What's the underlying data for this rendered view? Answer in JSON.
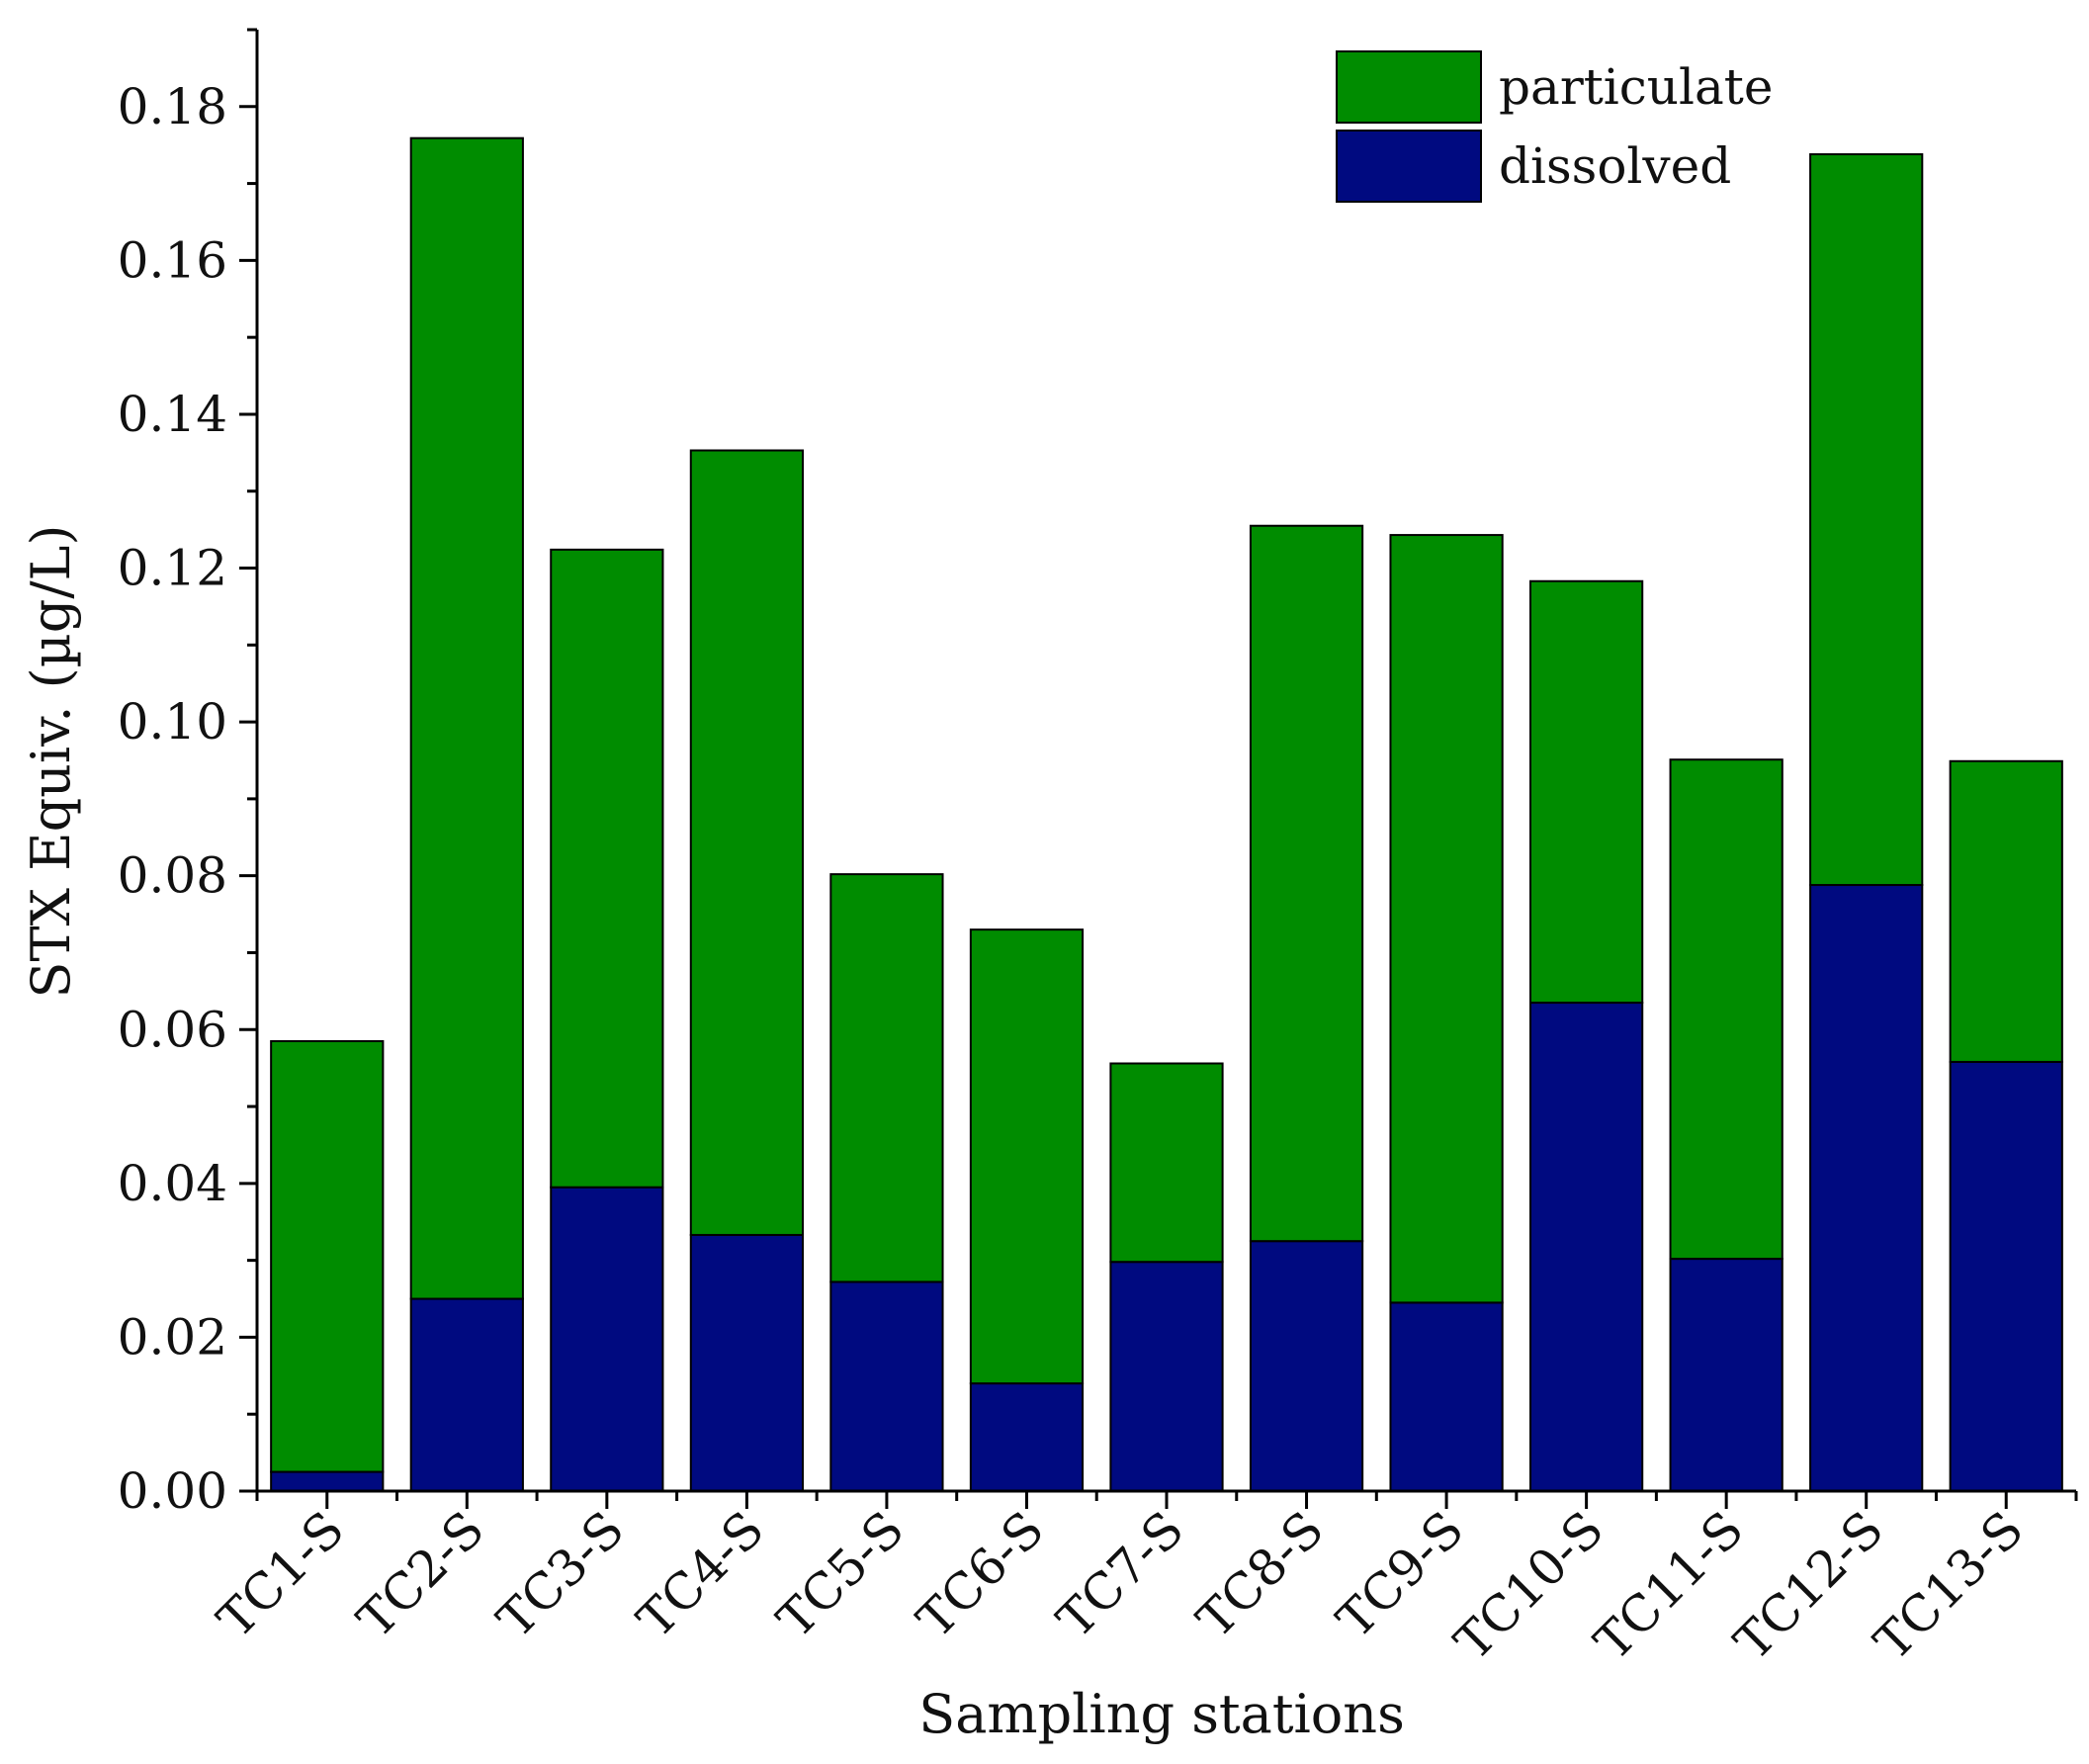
{
  "chart_data": {
    "type": "bar",
    "stacked": true,
    "title": "",
    "xlabel": "Sampling stations",
    "ylabel": "STX Equiv. (µg/L)",
    "ylim": [
      0,
      0.19
    ],
    "yticks": [
      "0.00",
      "0.02",
      "0.04",
      "0.06",
      "0.08",
      "0.10",
      "0.12",
      "0.14",
      "0.16",
      "0.18"
    ],
    "categories": [
      "TC1-S",
      "TC2-S",
      "TC3-S",
      "TC4-S",
      "TC5-S",
      "TC6-S",
      "TC7-S",
      "TC8-S",
      "TC9-S",
      "TC10-S",
      "TC11-S",
      "TC12-S",
      "TC13-S"
    ],
    "series": [
      {
        "name": "dissolved",
        "color": "#000a80",
        "values": [
          0.0025,
          0.025,
          0.0395,
          0.0333,
          0.0272,
          0.014,
          0.0298,
          0.0325,
          0.0245,
          0.0635,
          0.0302,
          0.0788,
          0.0558
        ]
      },
      {
        "name": "particulate",
        "color": "#008c00",
        "values": [
          0.056,
          0.1509,
          0.0829,
          0.102,
          0.053,
          0.059,
          0.0258,
          0.093,
          0.0998,
          0.0548,
          0.0649,
          0.095,
          0.0391
        ]
      }
    ],
    "legend": {
      "position": "top-right",
      "entries": [
        "particulate",
        "dissolved"
      ]
    }
  }
}
